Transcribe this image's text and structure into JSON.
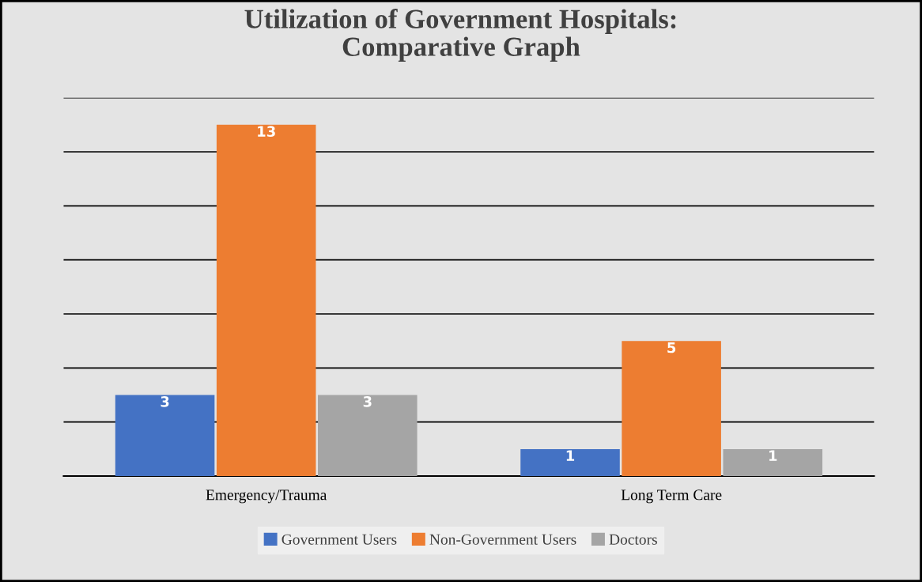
{
  "chart_data": {
    "type": "bar",
    "title": "Utilization of Government Hospitals:\nComparative Graph",
    "categories": [
      "Emergency/Trauma",
      "Long Term Care"
    ],
    "series": [
      {
        "name": "Government Users",
        "color": "#4472c4",
        "values": [
          3,
          1
        ]
      },
      {
        "name": "Non-Government Users",
        "color": "#ed7d31",
        "values": [
          13,
          5
        ]
      },
      {
        "name": "Doctors",
        "color": "#a5a5a5",
        "values": [
          3,
          1
        ]
      }
    ],
    "ylim": [
      0,
      14
    ],
    "yticks": [
      {
        "value": 0,
        "label": null
      },
      {
        "value": 2,
        "label": null
      },
      {
        "value": 4,
        "label": null
      },
      {
        "value": 6,
        "label": null
      },
      {
        "value": 8,
        "label": null
      },
      {
        "value": 10,
        "label": null
      },
      {
        "value": 12,
        "label": null
      },
      {
        "value": 14,
        "label": null
      }
    ],
    "tick_labels": "x",
    "grid": "y",
    "legend": "bottom",
    "data_labels": true
  }
}
